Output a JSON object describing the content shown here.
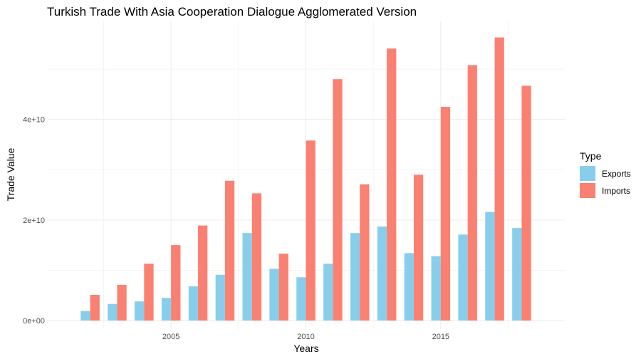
{
  "chart_data": {
    "type": "bar",
    "title": "Turkish Trade With Asia Cooperation Dialogue Agglomerated Version",
    "xlabel": "Years",
    "ylabel": "Trade Value",
    "x": [
      2002,
      2003,
      2004,
      2005,
      2006,
      2007,
      2008,
      2009,
      2010,
      2011,
      2012,
      2013,
      2014,
      2015,
      2016,
      2017,
      2018
    ],
    "xlim": [
      2000.4,
      2019.6
    ],
    "ylim": [
      -1700000000.0,
      59500000000.0
    ],
    "x_ticks": [
      {
        "value": 2005,
        "label": "2005"
      },
      {
        "value": 2010,
        "label": "2010"
      },
      {
        "value": 2015,
        "label": "2015"
      }
    ],
    "y_ticks": [
      {
        "value": 0,
        "label": "0e+00"
      },
      {
        "value": 20000000000,
        "label": "2e+10"
      },
      {
        "value": 40000000000,
        "label": "4e+10"
      }
    ],
    "grid": true,
    "legend": {
      "title": "Type",
      "position": "right"
    },
    "series": [
      {
        "name": "Exports",
        "color": "#87CEEB",
        "values": [
          1900000000,
          3300000000,
          3800000000,
          4500000000,
          6800000000,
          9100000000,
          17400000000,
          10300000000,
          8600000000,
          11300000000,
          17400000000,
          18700000000,
          13400000000,
          12800000000,
          17100000000,
          21600000000,
          18400000000
        ]
      },
      {
        "name": "Imports",
        "color": "#FA8072",
        "values": [
          5100000000,
          7100000000,
          11300000000,
          15000000000,
          18900000000,
          27800000000,
          25300000000,
          13300000000,
          35800000000,
          48000000000,
          27100000000,
          54100000000,
          29000000000,
          42500000000,
          50800000000,
          56300000000,
          46700000000
        ]
      }
    ]
  }
}
